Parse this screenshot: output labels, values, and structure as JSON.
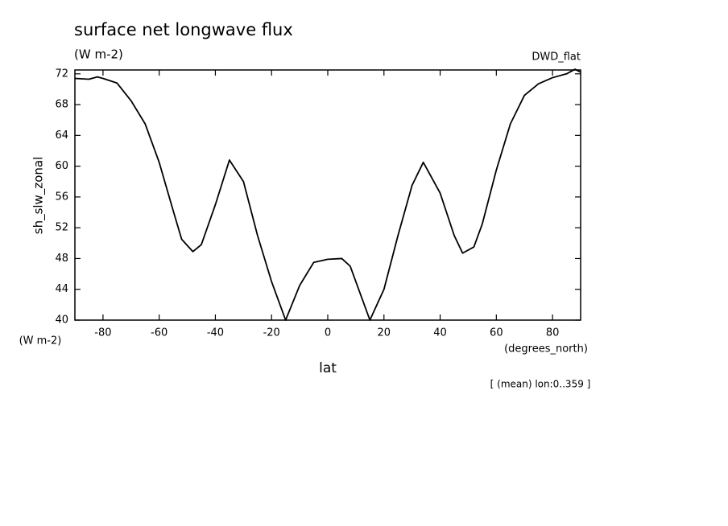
{
  "chart_data": {
    "type": "line",
    "title": "surface net longwave flux",
    "subtitle": "(W m-2)",
    "label_right": "DWD_flat",
    "y_label": "sh_slw_zonal",
    "y_unit": "(W m-2)",
    "x_unit": "(degrees_north)",
    "x_label": "lat",
    "note": "[ (mean) lon:0..359 ]",
    "x": [
      -90,
      -85,
      -82,
      -80,
      -75,
      -70,
      -65,
      -60,
      -55,
      -52,
      -48,
      -45,
      -40,
      -35,
      -30,
      -25,
      -20,
      -15,
      -10,
      -5,
      0,
      5,
      8,
      10,
      15,
      20,
      25,
      30,
      34,
      40,
      45,
      48,
      52,
      55,
      60,
      65,
      70,
      75,
      80,
      85,
      88,
      90
    ],
    "series": [
      {
        "name": "sh_slw_zonal",
        "color": "#000000",
        "values": [
          71.4,
          71.3,
          71.6,
          71.4,
          70.8,
          68.5,
          65.5,
          60.5,
          54.2,
          50.5,
          48.9,
          49.8,
          55,
          60.8,
          58,
          51,
          45,
          40,
          44.5,
          47.5,
          47.9,
          48,
          47,
          45,
          40,
          44,
          51,
          57.5,
          60.5,
          56.5,
          51,
          48.7,
          49.5,
          52.5,
          59.5,
          65.5,
          69.2,
          70.7,
          71.5,
          72,
          72.6,
          72.2
        ]
      }
    ],
    "xlim": [
      -90,
      90
    ],
    "ylim": [
      40,
      72.5
    ],
    "xticks": [
      -80,
      -60,
      -40,
      -20,
      0,
      20,
      40,
      60,
      80
    ],
    "yticks": [
      40,
      44,
      48,
      52,
      56,
      60,
      64,
      68,
      72
    ],
    "grid": false
  }
}
